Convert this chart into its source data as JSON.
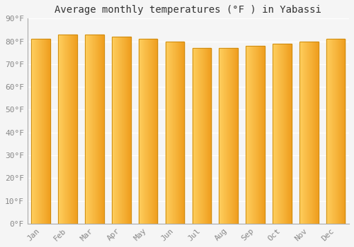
{
  "title": "Average monthly temperatures (°F ) in Yabassi",
  "months": [
    "Jan",
    "Feb",
    "Mar",
    "Apr",
    "May",
    "Jun",
    "Jul",
    "Aug",
    "Sep",
    "Oct",
    "Nov",
    "Dec"
  ],
  "values": [
    81,
    83,
    83,
    82,
    81,
    80,
    77,
    77,
    78,
    79,
    80,
    81
  ],
  "ylim": [
    0,
    90
  ],
  "yticks": [
    0,
    10,
    20,
    30,
    40,
    50,
    60,
    70,
    80,
    90
  ],
  "ytick_labels": [
    "0°F",
    "10°F",
    "20°F",
    "30°F",
    "40°F",
    "50°F",
    "60°F",
    "70°F",
    "80°F",
    "90°F"
  ],
  "background_color": "#f5f5f5",
  "grid_color": "#ffffff",
  "bar_color_left": "#FFD060",
  "bar_color_right": "#F0A020",
  "bar_edge_color": "#C8860A",
  "title_fontsize": 10,
  "tick_fontsize": 8
}
